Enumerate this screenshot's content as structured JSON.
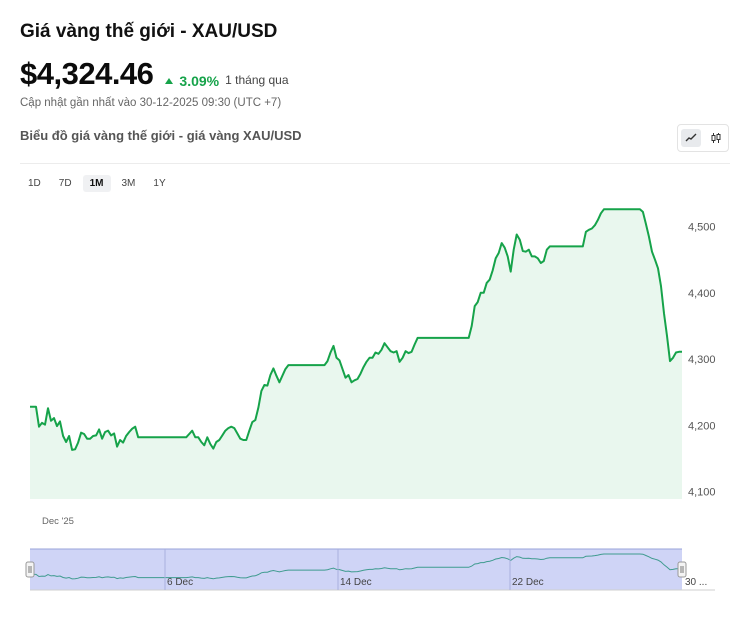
{
  "header": {
    "title": "Giá vàng thế giới - XAU/USD",
    "price": "$4,324.46",
    "change_pct": "3.09%",
    "change_period": "1 tháng qua",
    "updated": "Cập nhật gần nhất vào 30-12-2025 09:30 (UTC +7)",
    "subtitle": "Biểu đồ giá vàng thế giới - giá vàng XAU/USD"
  },
  "toolbar": {
    "line_icon": "line-chart-icon",
    "candle_icon": "candlestick-icon"
  },
  "ranges": [
    {
      "label": "1D",
      "active": false
    },
    {
      "label": "7D",
      "active": false
    },
    {
      "label": "1M",
      "active": true
    },
    {
      "label": "3M",
      "active": false
    },
    {
      "label": "1Y",
      "active": false
    }
  ],
  "colors": {
    "line": "#16a34a",
    "fill": "#e9f7ee",
    "accent_up": "#16a34a",
    "navigator_mask": "#c7cdf4"
  },
  "chart_data": {
    "type": "area",
    "title": "Biểu đồ giá vàng thế giới - giá vàng XAU/USD",
    "xlabel": "",
    "ylabel": "",
    "x_tick_labels": [
      "Dec '25"
    ],
    "y_ticks": [
      4100,
      4200,
      4300,
      4400,
      4500
    ],
    "ylim": [
      4089,
      4540
    ],
    "grid": false,
    "series": [
      {
        "values": [
          4228,
          4228,
          4228,
          4198,
          4204,
          4201,
          4226,
          4207,
          4211,
          4199,
          4206,
          4184,
          4175,
          4184,
          4163,
          4164,
          4174,
          4189,
          4187,
          4180,
          4180,
          4184,
          4185,
          4194,
          4180,
          4190,
          4192,
          4185,
          4188,
          4168,
          4178,
          4174,
          4184,
          4190,
          4195,
          4198,
          4182,
          4182,
          4182,
          4182,
          4182,
          4182,
          4182,
          4182,
          4182,
          4182,
          4182,
          4182,
          4182,
          4182,
          4182,
          4182,
          4182,
          4187,
          4192,
          4182,
          4182,
          4175,
          4170,
          4182,
          4172,
          4165,
          4175,
          4178,
          4185,
          4192,
          4196,
          4198,
          4196,
          4188,
          4180,
          4178,
          4178,
          4192,
          4205,
          4208,
          4227,
          4252,
          4261,
          4260,
          4276,
          4286,
          4275,
          4265,
          4275,
          4285,
          4291,
          4291,
          4291,
          4291,
          4291,
          4291,
          4291,
          4291,
          4291,
          4291,
          4291,
          4291,
          4291,
          4297,
          4310,
          4320,
          4302,
          4298,
          4285,
          4272,
          4276,
          4265,
          4268,
          4270,
          4278,
          4288,
          4296,
          4302,
          4302,
          4310,
          4308,
          4314,
          4324,
          4318,
          4312,
          4310,
          4312,
          4296,
          4302,
          4312,
          4309,
          4311,
          4322,
          4332,
          4332,
          4332,
          4332,
          4332,
          4332,
          4332,
          4332,
          4332,
          4332,
          4332,
          4332,
          4332,
          4332,
          4332,
          4332,
          4332,
          4332,
          4350,
          4380,
          4386,
          4400,
          4400,
          4415,
          4420,
          4434,
          4452,
          4460,
          4475,
          4468,
          4455,
          4432,
          4465,
          4488,
          4480,
          4463,
          4462,
          4465,
          4455,
          4455,
          4452,
          4445,
          4448,
          4465,
          4470,
          4470,
          4470,
          4470,
          4470,
          4470,
          4470,
          4470,
          4470,
          4470,
          4470,
          4470,
          4492,
          4495,
          4497,
          4502,
          4510,
          4520,
          4526,
          4526,
          4526,
          4526,
          4526,
          4526,
          4526,
          4526,
          4526,
          4526,
          4526,
          4526,
          4526,
          4522,
          4504,
          4485,
          4462,
          4450,
          4437,
          4410,
          4369,
          4335,
          4297,
          4302,
          4310,
          4311,
          4311
        ]
      }
    ],
    "navigator_labels": [
      "6 Dec",
      "14 Dec",
      "22 Dec",
      "30 ..."
    ]
  }
}
